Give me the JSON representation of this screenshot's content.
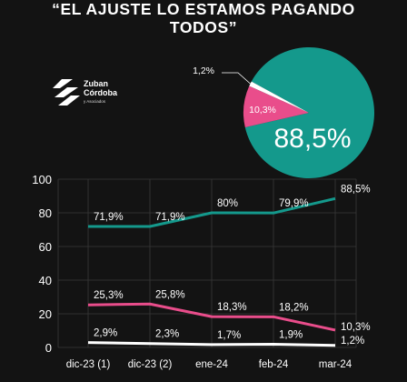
{
  "title_lines": [
    "“EL AJUSTE LO ESTAMOS PAGANDO",
    "TODOS”"
  ],
  "logo": {
    "line1": "Zuban",
    "line2": "Córdoba",
    "tagline": "y Asociados"
  },
  "pie": {
    "type": "pie",
    "slices": [
      {
        "label": "88,5%",
        "value": 88.5,
        "color": "#14998c"
      },
      {
        "label": "10,3%",
        "value": 10.3,
        "color": "#e94d8b"
      },
      {
        "label": "1,2%",
        "value": 1.2,
        "color": "#ffffff"
      }
    ]
  },
  "chart_data": {
    "type": "line",
    "categories": [
      "dic-23 (1)",
      "dic-23 (2)",
      "ene-24",
      "feb-24",
      "mar-24"
    ],
    "ylim": [
      0,
      100
    ],
    "yticks": [
      "0",
      "20",
      "40",
      "60",
      "80",
      "100"
    ],
    "grid": true,
    "series": [
      {
        "values": [
          71.9,
          71.9,
          80,
          79.9,
          88.5
        ],
        "labels": [
          "71,9%",
          "71,9%",
          "80%",
          "79,9%",
          "88,5%"
        ],
        "color": "#14998c"
      },
      {
        "values": [
          25.3,
          25.8,
          18.3,
          18.2,
          10.3
        ],
        "labels": [
          "25,3%",
          "25,8%",
          "18,3%",
          "18,2%",
          "10,3%"
        ],
        "color": "#e94d8b"
      },
      {
        "values": [
          2.9,
          2.3,
          1.7,
          1.9,
          1.2
        ],
        "labels": [
          "2,9%",
          "2,3%",
          "1,7%",
          "1,9%",
          "1,2%"
        ],
        "color": "#ffffff"
      }
    ]
  }
}
